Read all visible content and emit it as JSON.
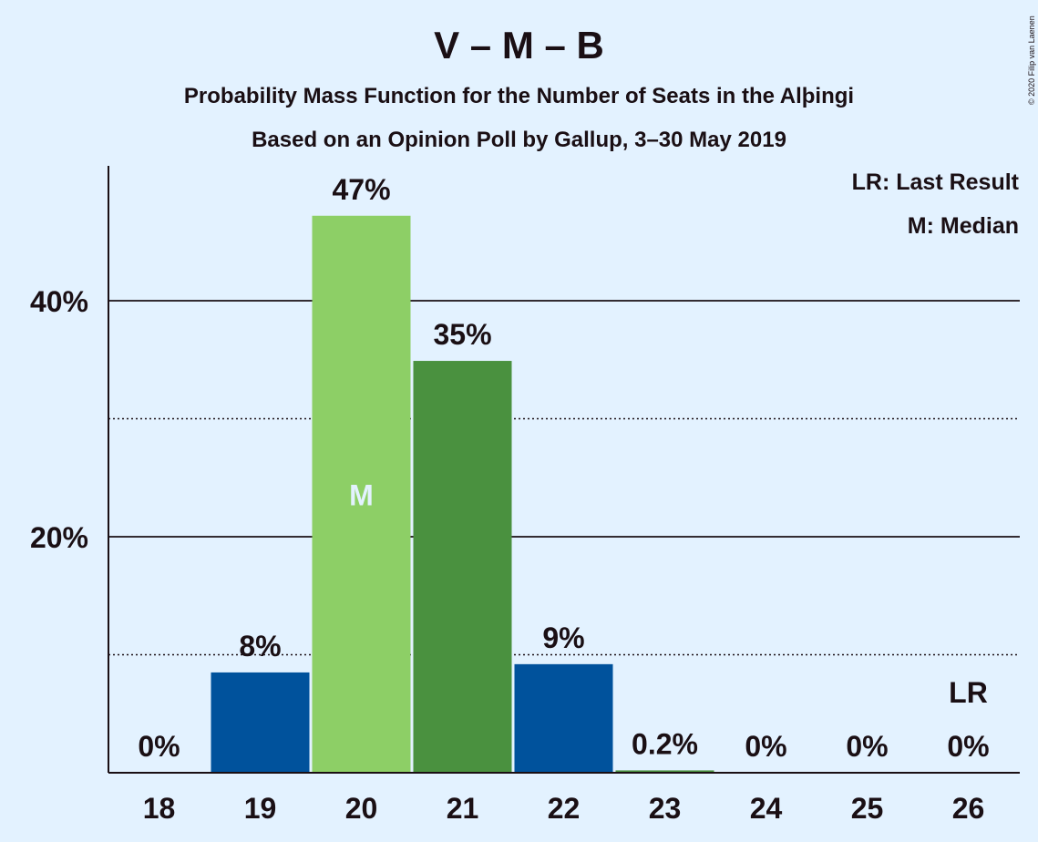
{
  "chart_data": {
    "type": "bar",
    "title": "V – M – B",
    "subtitle": "Probability Mass Function for the Number of Seats in the Alþingi",
    "subtitle2": "Based on an Opinion Poll by Gallup, 3–30 May 2019",
    "copyright": "© 2020 Filip van Laenen",
    "legend": {
      "placement": "top-right",
      "lr": "LR: Last Result",
      "m": "M: Median"
    },
    "categories": [
      "18",
      "19",
      "20",
      "21",
      "22",
      "23",
      "24",
      "25",
      "26"
    ],
    "values": [
      0,
      8.5,
      47.2,
      34.9,
      9.2,
      0.2,
      0,
      0,
      0
    ],
    "value_labels": [
      "0%",
      "8%",
      "47%",
      "35%",
      "9%",
      "0.2%",
      "0%",
      "0%",
      "0%"
    ],
    "colors": [
      "#00529c",
      "#00529c",
      "#8dcf66",
      "#4a913f",
      "#00529c",
      "#4a913f",
      "#00529c",
      "#00529c",
      "#00529c"
    ],
    "median_index": 2,
    "median_label": "M",
    "last_result_index": 8,
    "last_result_label": "LR",
    "ylim": [
      0,
      51
    ],
    "yticks": [
      20,
      40
    ],
    "ytick_labels": [
      "20%",
      "40%"
    ],
    "minor_gridlines": [
      10,
      30
    ],
    "grid": true
  }
}
